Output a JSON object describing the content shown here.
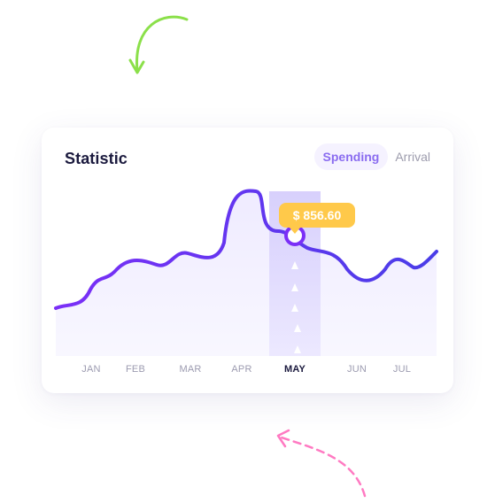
{
  "statistic": {
    "title": "Statistic",
    "tabs": [
      {
        "label": "Spending",
        "active": true
      },
      {
        "label": "Arrival",
        "active": false
      }
    ]
  },
  "chart_data": {
    "type": "area",
    "categories": [
      "JAN",
      "FEB",
      "MAR",
      "APR",
      "MAY",
      "JUN",
      "JUL"
    ],
    "highlighted_category": "MAY",
    "tooltip": {
      "label": "$ 856.60"
    },
    "grid": false,
    "colors": {
      "line_start": "#7b2ff7",
      "line_end": "#4a3de8",
      "area": "#f2efff",
      "highlight_band": "#d6cffc",
      "tooltip": "#ffc94a",
      "arrow_deco": "#8be04a",
      "pink_deco": "#ff7ac2"
    }
  }
}
